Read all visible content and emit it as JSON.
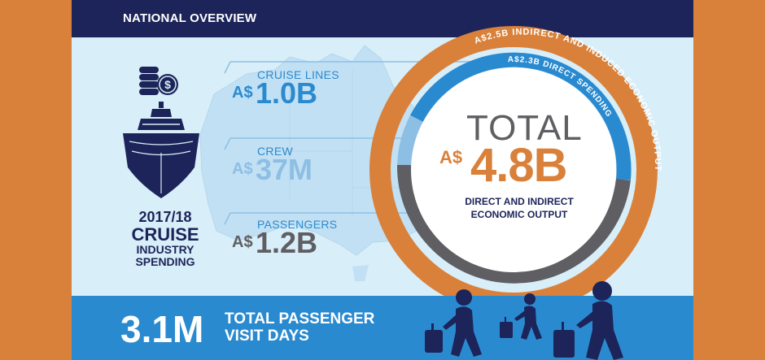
{
  "header": {
    "title": "NATIONAL OVERVIEW"
  },
  "spending": {
    "year": "2017/18",
    "line1": "CRUISE",
    "line2": "INDUSTRY",
    "line3": "SPENDING"
  },
  "stats": [
    {
      "title": "CRUISE LINES",
      "prefix": "A$",
      "value": "1.0B"
    },
    {
      "title": "CREW",
      "prefix": "A$",
      "value": "37M"
    },
    {
      "title": "PASSENGERS",
      "prefix": "A$",
      "value": "1.2B"
    }
  ],
  "total": {
    "word": "TOTAL",
    "prefix": "A$",
    "value": "4.8B",
    "desc_line1": "DIRECT AND INDIRECT",
    "desc_line2": "ECONOMIC OUTPUT"
  },
  "rings": {
    "outer_label": "A$2.5B INDIRECT AND INDUCED ECONOMIC OUTPUT",
    "inner_label": "A$2.3B DIRECT SPENDING"
  },
  "footer": {
    "value": "3.1M",
    "label_line1": "TOTAL PASSENGER",
    "label_line2": "VISIT DAYS"
  },
  "colors": {
    "navy": "#1c2459",
    "orange": "#d9813a",
    "blue": "#2a8ad0",
    "light_blue": "#8dbfe4",
    "grey": "#5f5f63",
    "map_bg": "#d8eef8"
  },
  "icons": [
    "coins-icon",
    "cruise-ship-icon",
    "australia-map",
    "traveller-icon"
  ]
}
